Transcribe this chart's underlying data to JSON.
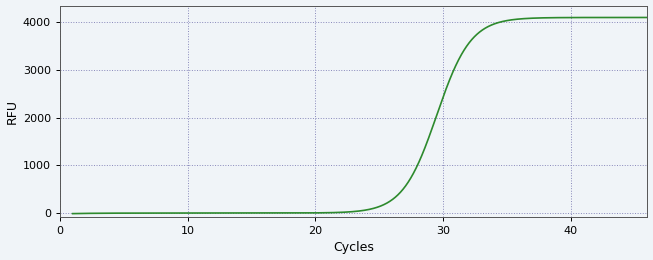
{
  "title": "",
  "xlabel": "Cycles",
  "ylabel": "RFU",
  "line_color": "#2d8a2d",
  "line_width": 1.2,
  "background_color": "#f0f4f8",
  "grid_color": "#8888bb",
  "grid_linestyle": ":",
  "grid_linewidth": 0.7,
  "xlim": [
    0,
    46
  ],
  "ylim": [
    -80,
    4350
  ],
  "xticks": [
    0,
    10,
    20,
    30,
    40
  ],
  "yticks": [
    0,
    1000,
    2000,
    3000,
    4000
  ],
  "sigmoid_L": 4100,
  "sigmoid_k": 0.75,
  "sigmoid_x0": 29.5,
  "x_start": 1,
  "x_end": 46,
  "figsize": [
    6.53,
    2.6
  ],
  "dpi": 100,
  "tick_labelsize": 8,
  "label_fontsize": 9
}
